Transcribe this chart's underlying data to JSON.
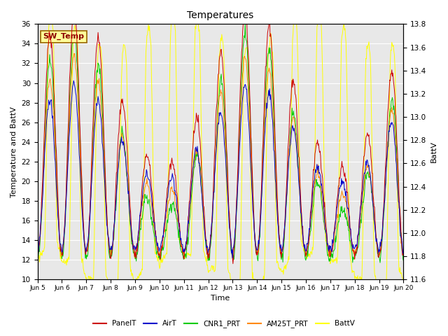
{
  "title": "Temperatures",
  "xlabel": "Time",
  "ylabel_left": "Temperature and BattV",
  "ylabel_right": "BattV",
  "ylim_left": [
    10,
    36
  ],
  "ylim_right": [
    11.6,
    13.8
  ],
  "background_color": "#ffffff",
  "plot_bg_color": "#e8e8e8",
  "grid_color": "#ffffff",
  "n_days": 15,
  "xtick_labels": [
    "Jun 5",
    "Jun 6",
    "Jun 7",
    "Jun 8",
    "Jun 9",
    "Jun 10",
    "Jun 11",
    "Jun 12",
    "Jun 13",
    "Jun 14",
    "Jun 15",
    "Jun 16",
    "Jun 17",
    "Jun 18",
    "Jun 19",
    "Jun 20"
  ],
  "legend_items": [
    {
      "label": "PanelT",
      "color": "#cc0000"
    },
    {
      "label": "AirT",
      "color": "#0000cc"
    },
    {
      "label": "CNR1_PRT",
      "color": "#00cc00"
    },
    {
      "label": "AM25T_PRT",
      "color": "#ff8800"
    },
    {
      "label": "BattV",
      "color": "#ffff00"
    }
  ],
  "annotation_text": "SW_Temp",
  "annotation_color": "#8b0000",
  "annotation_bg": "#ffff99",
  "annotation_border": "#996600"
}
